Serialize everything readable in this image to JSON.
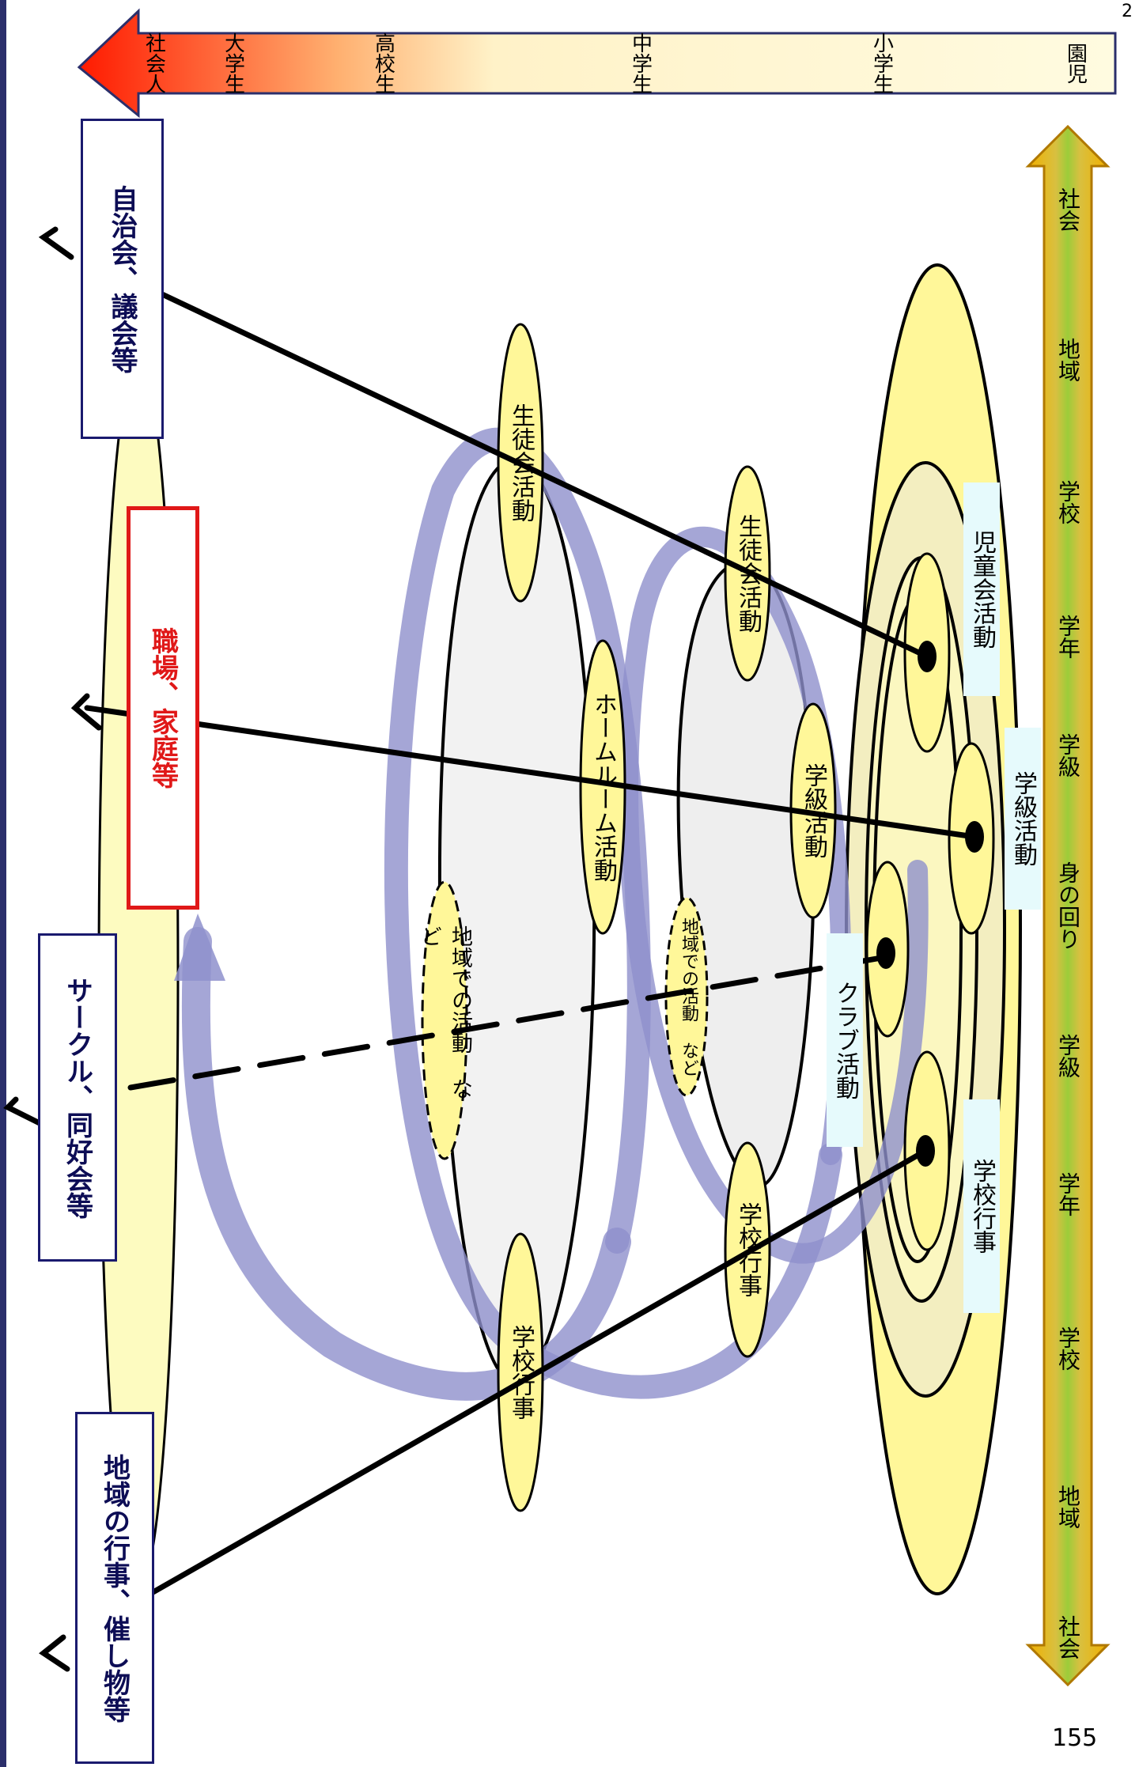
{
  "top_scale": {
    "labels": [
      "社会人",
      "大学生",
      "高校生",
      "中学生",
      "小学生",
      "園児"
    ],
    "colors": {
      "start": "#ff1a00",
      "end": "#fffbe0"
    }
  },
  "bottom_scale": {
    "labels": [
      "社会",
      "地域",
      "学校",
      "学年",
      "学級",
      "身の回り",
      "学級",
      "学年",
      "学校",
      "地域",
      "社会"
    ],
    "color": "#f0b400"
  },
  "outcome_boxes": {
    "local_events": "地域の行事、催し物等",
    "circles": "サークル、同好会等",
    "workplace": "職場、家庭等",
    "council": "自治会、議会等"
  },
  "high_school": {
    "student_council": "生徒会活動",
    "homeroom": "ホームルーム活動",
    "school_events": "学校行事",
    "community": "地域での活動 など"
  },
  "junior_high": {
    "student_council": "生徒会活動",
    "class_activities": "学級活動",
    "school_events": "学校行事",
    "community": "地域での活動 など"
  },
  "elementary": {
    "childrens_council": "児童会活動",
    "class_activities": "学級活動",
    "clubs": "クラブ活動",
    "school_events": "学校行事"
  },
  "page_number": "155",
  "corner_mark": "2"
}
